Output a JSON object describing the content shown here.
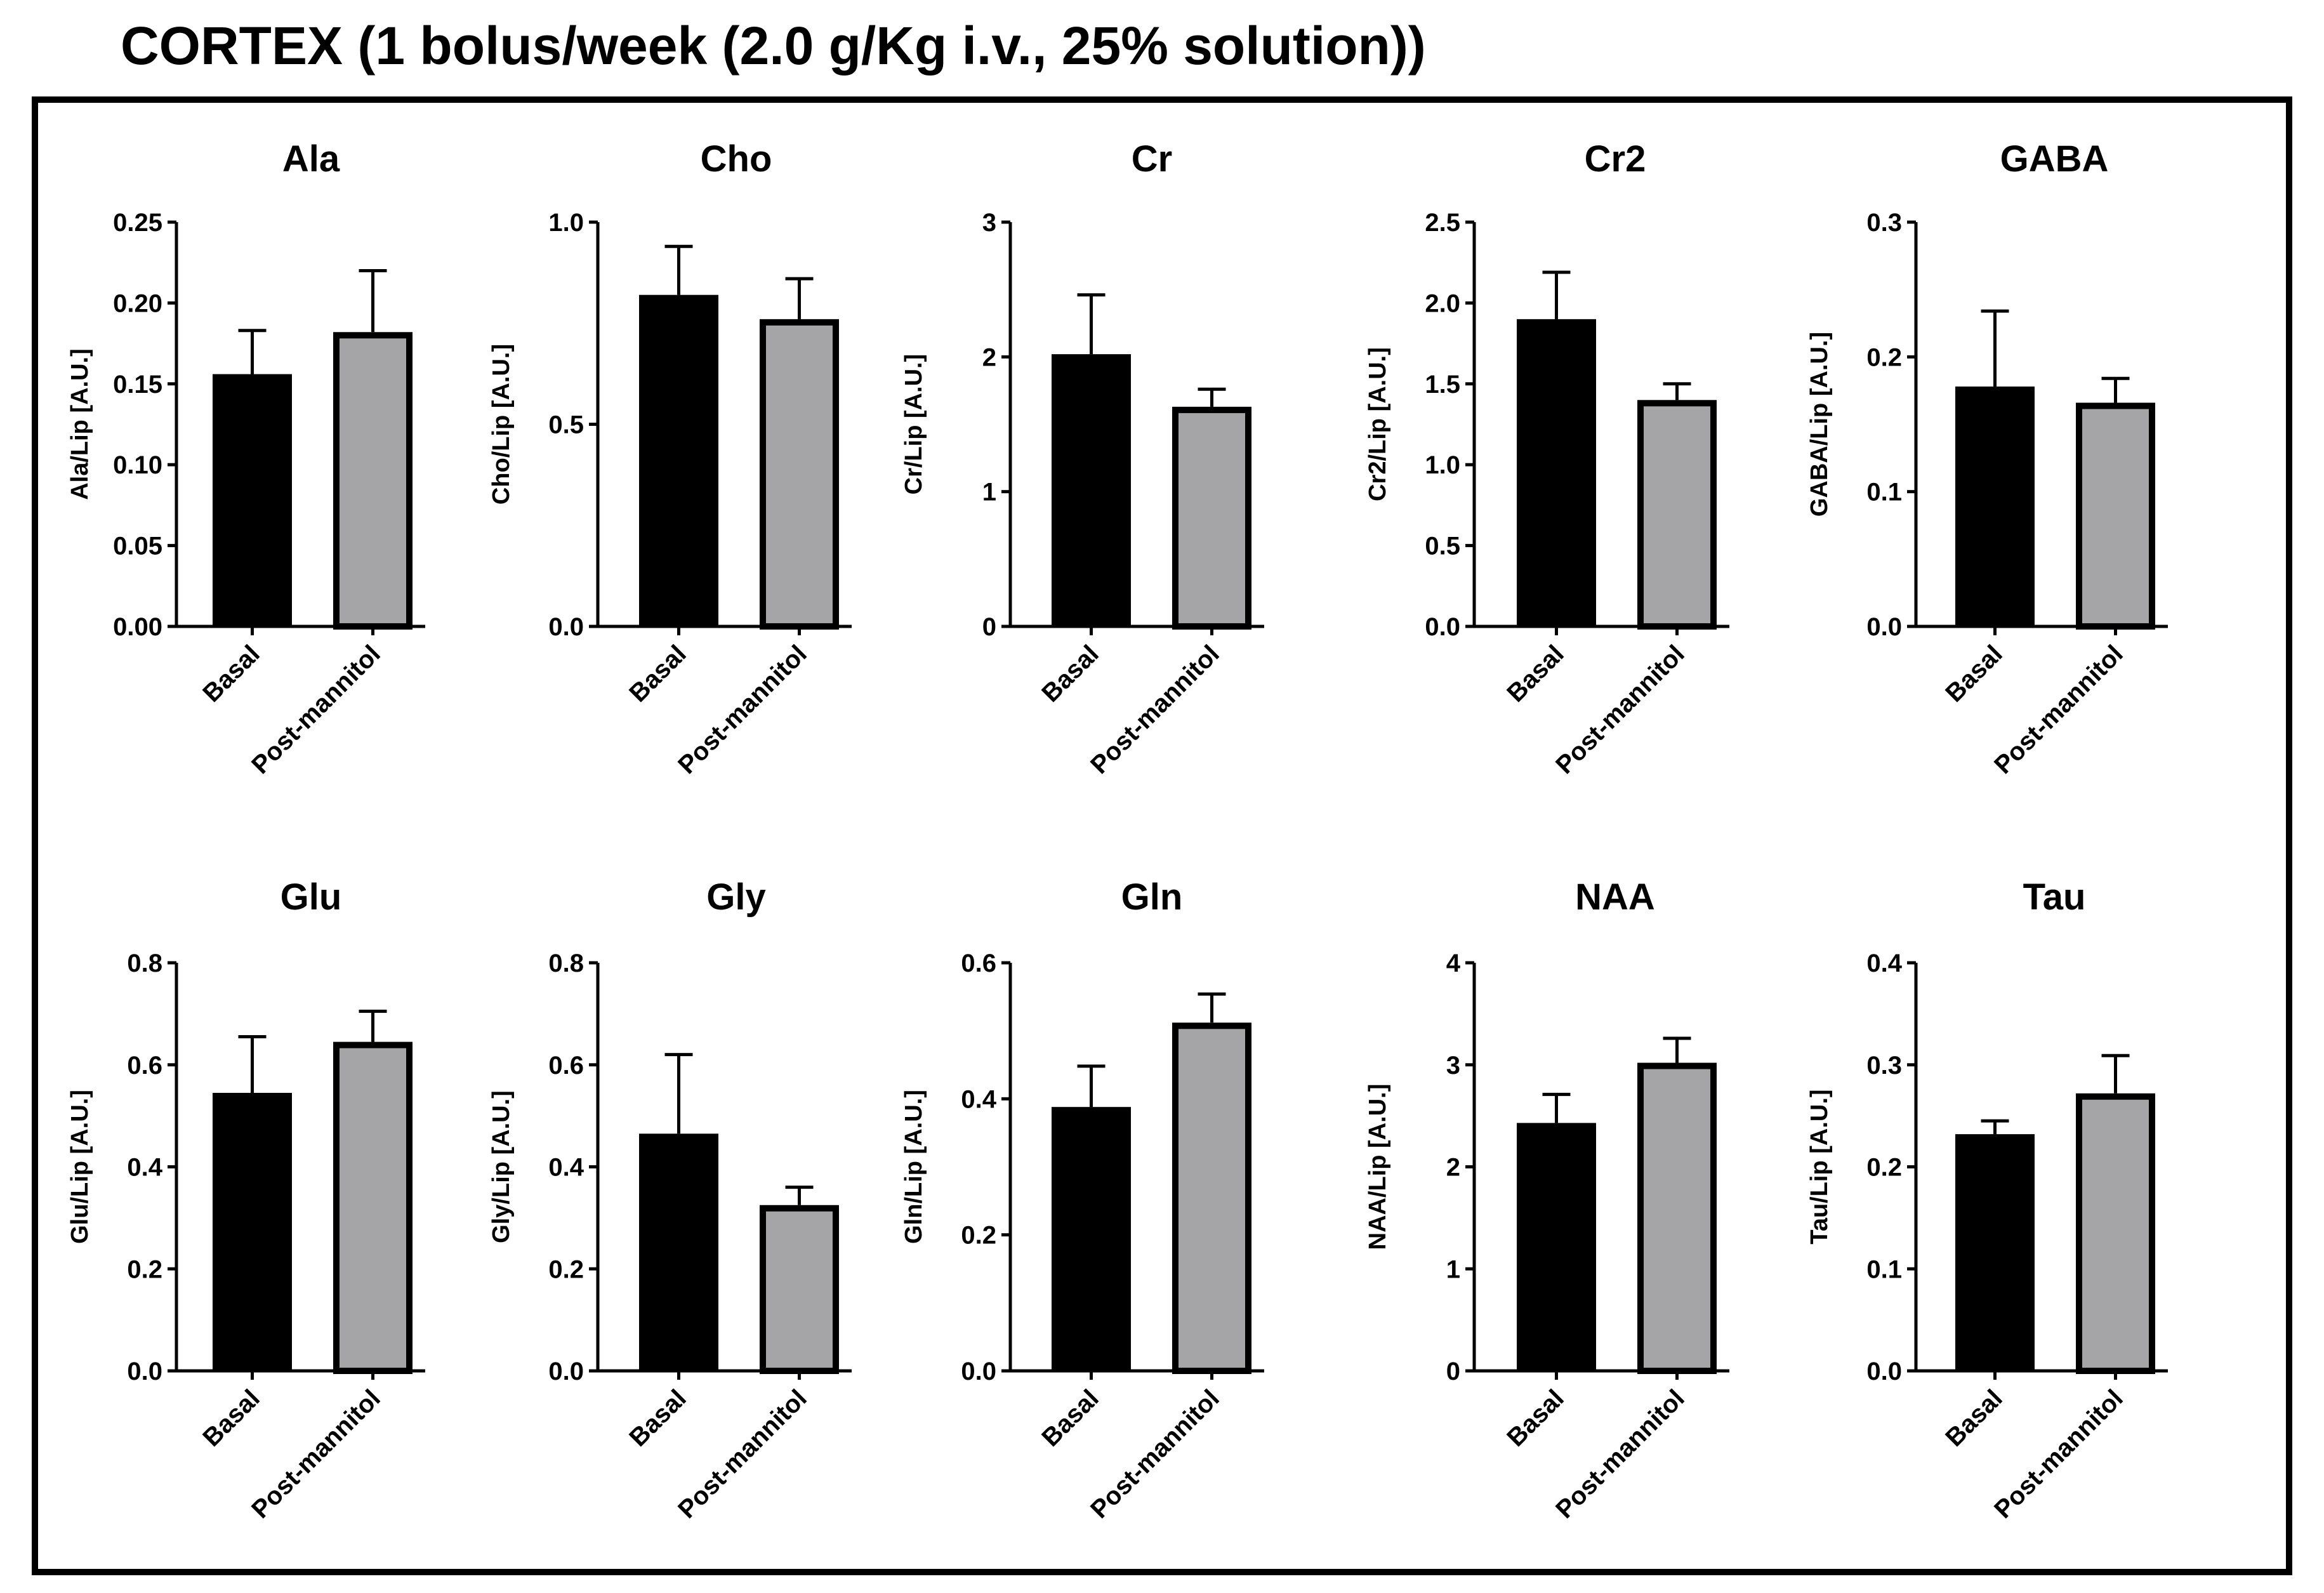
{
  "title": "CORTEX (1 bolus/week (2.0 g/Kg i.v., 25% solution))",
  "colors": {
    "basal": "#000000",
    "post": "#a5a5a8",
    "axis": "#000000",
    "frame": "#000000"
  },
  "chart_data": [
    {
      "type": "bar",
      "title": "Ala",
      "ylabel": "Ala/Lip [A.U.]",
      "categories": [
        "Basal",
        "Post-mannitol"
      ],
      "values": [
        0.156,
        0.182
      ],
      "error_plus": [
        0.027,
        0.038
      ],
      "ylim": [
        0,
        0.25
      ],
      "ticks": [
        0,
        0.05,
        0.1,
        0.15,
        0.2,
        0.25
      ],
      "tick_labels": [
        "0.00",
        "0.05",
        "0.10",
        "0.15",
        "0.20",
        "0.25"
      ]
    },
    {
      "type": "bar",
      "title": "Cho",
      "ylabel": "Cho/Lip [A.U.]",
      "categories": [
        "Basal",
        "Post-mannitol"
      ],
      "values": [
        0.82,
        0.76
      ],
      "error_plus": [
        0.12,
        0.1
      ],
      "ylim": [
        0,
        1.0
      ],
      "ticks": [
        0,
        0.5,
        1.0
      ],
      "tick_labels": [
        "0.0",
        "0.5",
        "1.0"
      ]
    },
    {
      "type": "bar",
      "title": "Cr",
      "ylabel": "Cr/Lip [A.U.]",
      "categories": [
        "Basal",
        "Post-mannitol"
      ],
      "values": [
        2.02,
        1.63
      ],
      "error_plus": [
        0.44,
        0.13
      ],
      "ylim": [
        0,
        3
      ],
      "ticks": [
        0,
        1,
        2,
        3
      ],
      "tick_labels": [
        "0",
        "1",
        "2",
        "3"
      ]
    },
    {
      "type": "bar",
      "title": "Cr2",
      "ylabel": "Cr2/Lip [A.U.]",
      "categories": [
        "Basal",
        "Post-mannitol"
      ],
      "values": [
        1.9,
        1.4
      ],
      "error_plus": [
        0.29,
        0.1
      ],
      "ylim": [
        0,
        2.5
      ],
      "ticks": [
        0,
        0.5,
        1.0,
        1.5,
        2.0,
        2.5
      ],
      "tick_labels": [
        "0.0",
        "0.5",
        "1.0",
        "1.5",
        "2.0",
        "2.5"
      ]
    },
    {
      "type": "bar",
      "title": "GABA",
      "ylabel": "GABA/Lip [A.U.]",
      "categories": [
        "Basal",
        "Post-mannitol"
      ],
      "values": [
        0.178,
        0.166
      ],
      "error_plus": [
        0.056,
        0.018
      ],
      "ylim": [
        0,
        0.3
      ],
      "ticks": [
        0,
        0.1,
        0.2,
        0.3
      ],
      "tick_labels": [
        "0.0",
        "0.1",
        "0.2",
        "0.3"
      ]
    },
    {
      "type": "bar",
      "title": "Glu",
      "ylabel": "Glu/Lip [A.U.]",
      "categories": [
        "Basal",
        "Post-mannitol"
      ],
      "values": [
        0.545,
        0.645
      ],
      "error_plus": [
        0.11,
        0.06
      ],
      "ylim": [
        0,
        0.8
      ],
      "ticks": [
        0,
        0.2,
        0.4,
        0.6,
        0.8
      ],
      "tick_labels": [
        "0.0",
        "0.2",
        "0.4",
        "0.6",
        "0.8"
      ]
    },
    {
      "type": "bar",
      "title": "Gly",
      "ylabel": "Gly/Lip [A.U.]",
      "categories": [
        "Basal",
        "Post-mannitol"
      ],
      "values": [
        0.465,
        0.325
      ],
      "error_plus": [
        0.155,
        0.035
      ],
      "ylim": [
        0,
        0.8
      ],
      "ticks": [
        0,
        0.2,
        0.4,
        0.6,
        0.8
      ],
      "tick_labels": [
        "0.0",
        "0.2",
        "0.4",
        "0.6",
        "0.8"
      ]
    },
    {
      "type": "bar",
      "title": "Gln",
      "ylabel": "Gln/Lip [A.U.]",
      "categories": [
        "Basal",
        "Post-mannitol"
      ],
      "values": [
        0.388,
        0.512
      ],
      "error_plus": [
        0.06,
        0.042
      ],
      "ylim": [
        0,
        0.6
      ],
      "ticks": [
        0,
        0.2,
        0.4,
        0.6
      ],
      "tick_labels": [
        "0.0",
        "0.2",
        "0.4",
        "0.6"
      ]
    },
    {
      "type": "bar",
      "title": "NAA",
      "ylabel": "NAA/Lip [A.U.]",
      "categories": [
        "Basal",
        "Post-mannitol"
      ],
      "values": [
        2.43,
        3.02
      ],
      "error_plus": [
        0.28,
        0.24
      ],
      "ylim": [
        0,
        4
      ],
      "ticks": [
        0,
        1,
        2,
        3,
        4
      ],
      "tick_labels": [
        "0",
        "1",
        "2",
        "3",
        "4"
      ]
    },
    {
      "type": "bar",
      "title": "Tau",
      "ylabel": "Tau/Lip [A.U.]",
      "categories": [
        "Basal",
        "Post-mannitol"
      ],
      "values": [
        0.232,
        0.272
      ],
      "error_plus": [
        0.013,
        0.037
      ],
      "ylim": [
        0,
        0.4
      ],
      "ticks": [
        0,
        0.1,
        0.2,
        0.3,
        0.4
      ],
      "tick_labels": [
        "0.0",
        "0.1",
        "0.2",
        "0.3",
        "0.4"
      ]
    }
  ]
}
